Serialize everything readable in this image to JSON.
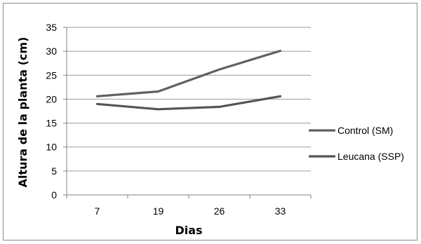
{
  "chart_data": {
    "type": "line",
    "categories": [
      "7",
      "19",
      "26",
      "33"
    ],
    "series": [
      {
        "name": "Control (SM)",
        "values": [
          20.6,
          21.6,
          26.2,
          30.1
        ],
        "color": "#606060"
      },
      {
        "name": "Leucana (SSP)",
        "values": [
          19.0,
          17.9,
          18.4,
          20.6
        ],
        "color": "#555555"
      }
    ],
    "xlabel": "Dias",
    "ylabel": "Altura de la planta (cm)",
    "ylim": [
      0,
      35
    ],
    "yticks": [
      0,
      5,
      10,
      15,
      20,
      25,
      30,
      35
    ],
    "grid": true,
    "legend_position": "right"
  }
}
